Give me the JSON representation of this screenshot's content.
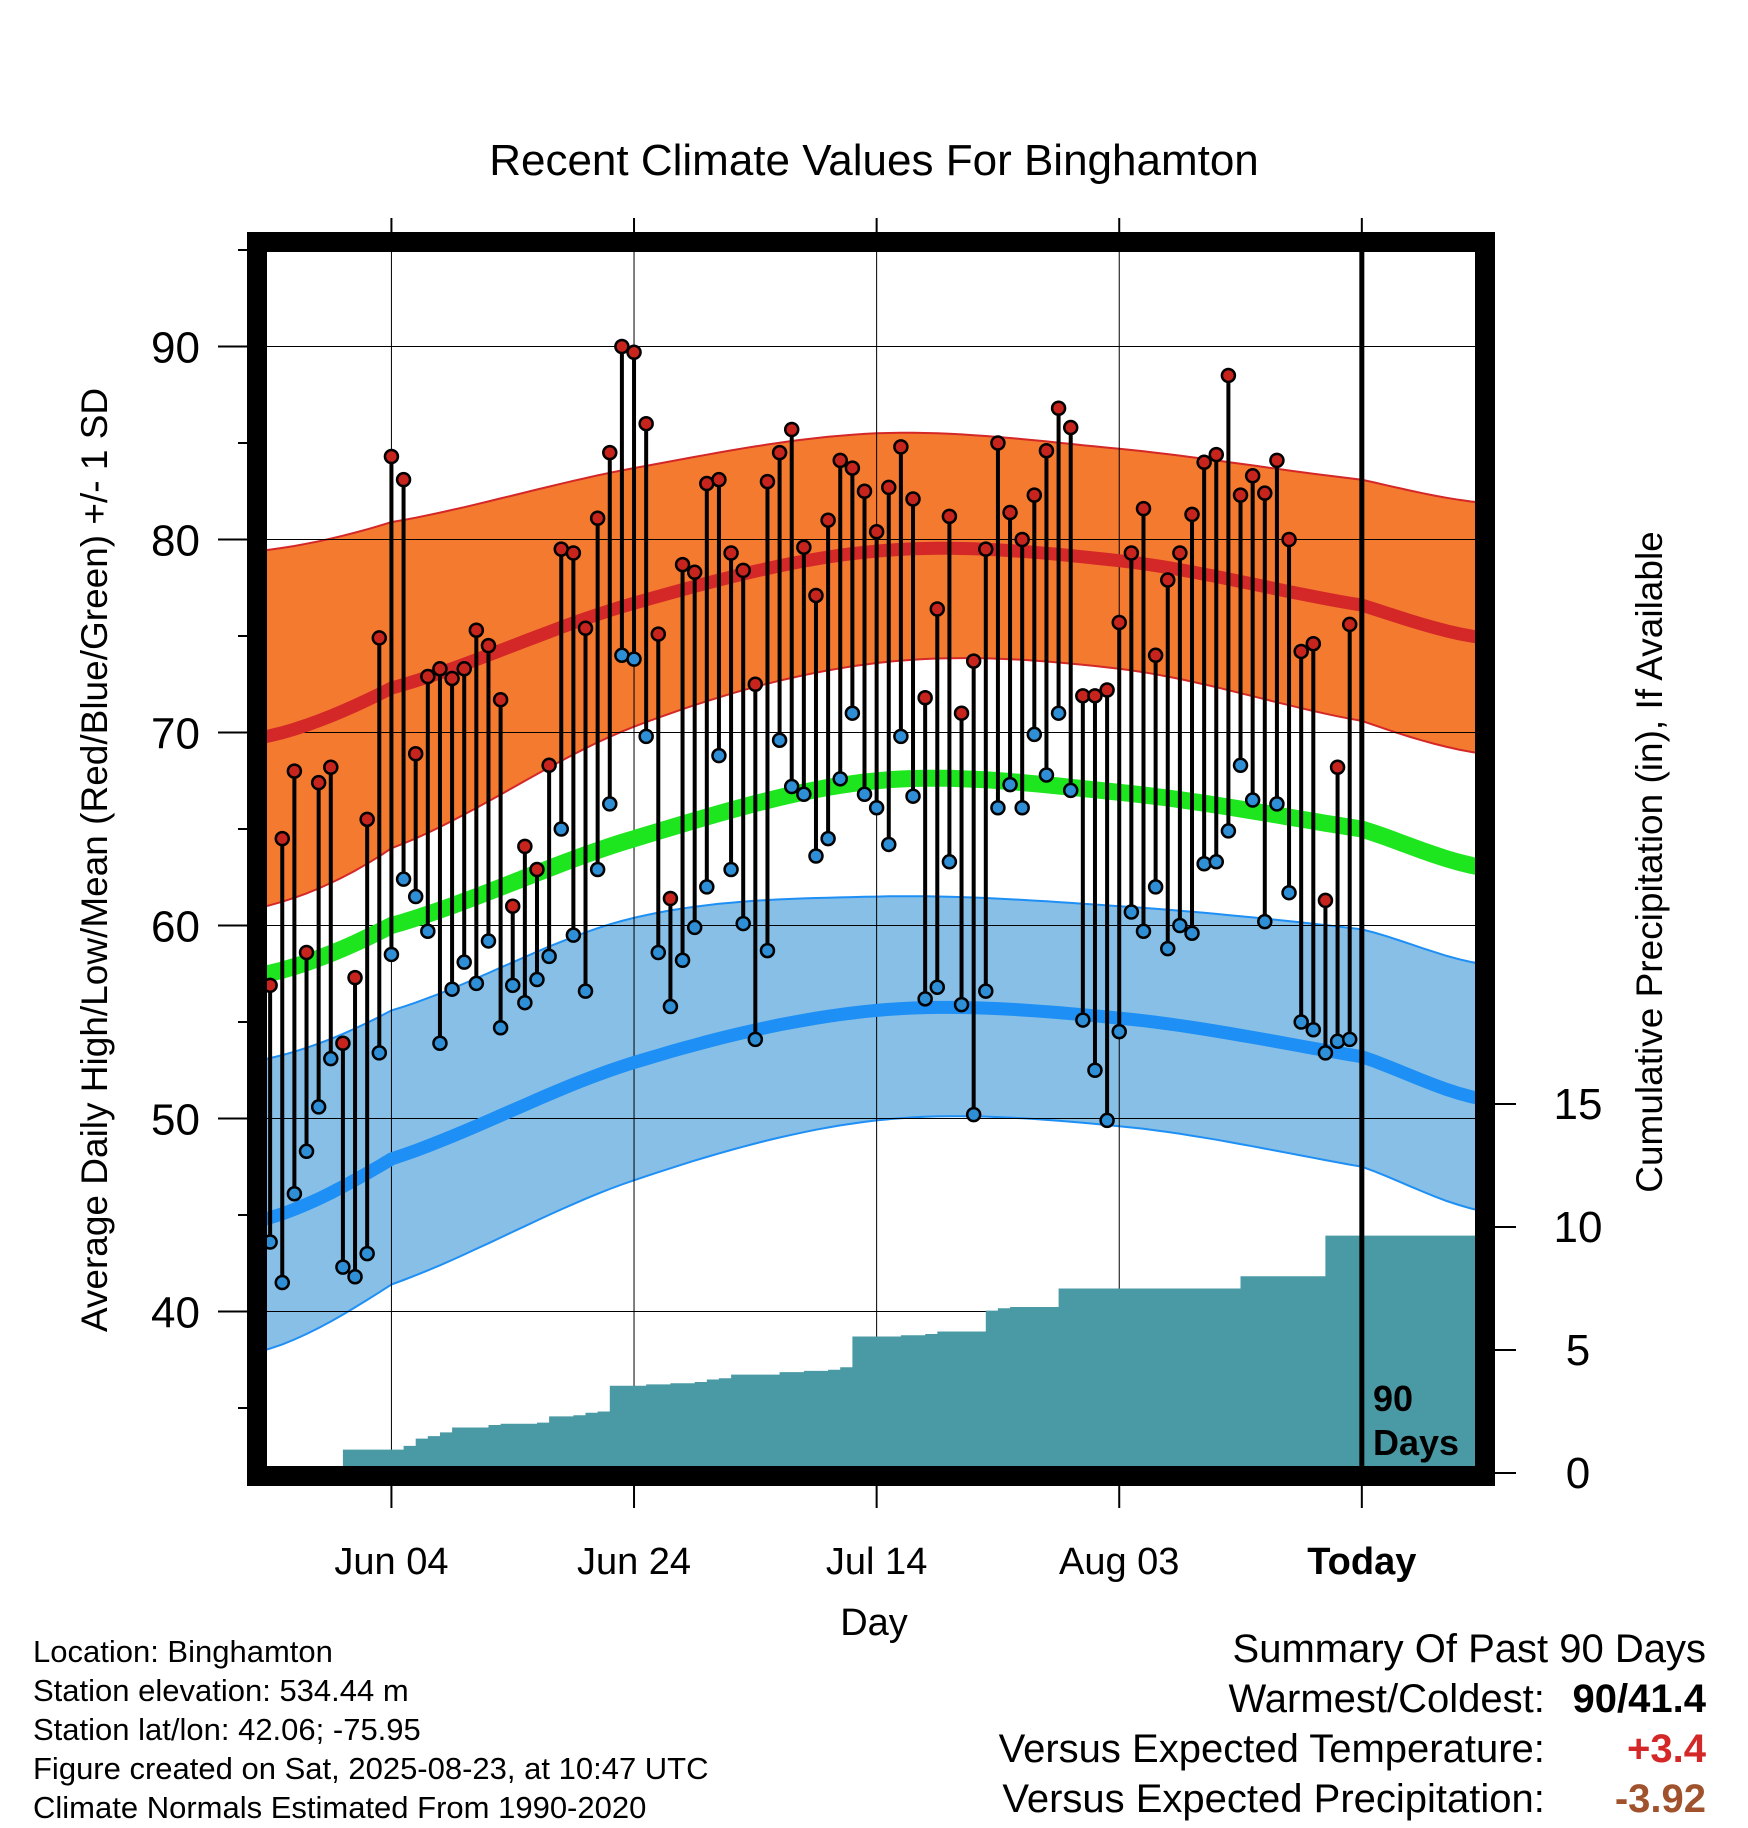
{
  "chart_data": {
    "type": "line",
    "title": "Recent Climate Values For Binghamton",
    "xlabel": "Day",
    "ylabel": "Average Daily High/Low/Mean (Red/Blue/Green) +/- 1 SD",
    "y2label": "Cumulative Precipitation (in), If Available",
    "ylim": [
      31.3,
      95
    ],
    "y_ticks": [
      40,
      50,
      60,
      70,
      80,
      90
    ],
    "y2lim": [
      0,
      23.5
    ],
    "y2_ticks": [
      0,
      5,
      10,
      15
    ],
    "x_range": [
      "2025-05-24",
      "2025-09-02"
    ],
    "x_ticks": [
      {
        "date": "2025-06-04",
        "label": "Jun 04"
      },
      {
        "date": "2025-06-24",
        "label": "Jun 24"
      },
      {
        "date": "2025-07-14",
        "label": "Jul 14"
      },
      {
        "date": "2025-08-03",
        "label": "Aug 03"
      },
      {
        "date": "2025-08-23",
        "label": "Today"
      }
    ],
    "today_marker": {
      "date": "2025-08-23",
      "label_line1": "90",
      "label_line2": "Days"
    },
    "grid": true,
    "colors": {
      "high_band": "#f47a30",
      "high_line": "#d42727",
      "low_band": "#87bfe6",
      "low_line": "#1e8ff5",
      "mean_line": "#1ee61e",
      "precip": "#4a9aa5",
      "observed_high_point": "#c8241e",
      "observed_low_point": "#2f8fd6",
      "positive_anomaly": "#d42727",
      "precip_anomaly": "#a0522d"
    },
    "normals": {
      "dates": [
        "2025-05-24",
        "2025-06-04",
        "2025-06-24",
        "2025-07-14",
        "2025-08-03",
        "2025-08-23",
        "2025-09-02"
      ],
      "high_mean": [
        69.7,
        72.3,
        76.7,
        79.4,
        78.9,
        76.6,
        74.9
      ],
      "high_upper": [
        79.4,
        80.9,
        83.7,
        85.5,
        84.7,
        83.1,
        81.9
      ],
      "high_lower": [
        60.9,
        64.0,
        70.3,
        73.6,
        73.3,
        70.6,
        68.9
      ],
      "mean": [
        57.4,
        60.0,
        64.5,
        67.5,
        66.9,
        65.0,
        63.0
      ],
      "low_mean": [
        44.7,
        47.9,
        52.9,
        55.6,
        55.2,
        53.2,
        51.0
      ],
      "low_upper": [
        53.0,
        55.6,
        60.4,
        61.5,
        61.0,
        59.8,
        58.0
      ],
      "low_lower": [
        37.9,
        41.4,
        46.8,
        49.9,
        49.6,
        47.5,
        45.2
      ]
    },
    "observed": {
      "start_date": "2025-05-25",
      "highs": [
        56.9,
        64.5,
        68.0,
        58.6,
        67.4,
        68.2,
        53.9,
        57.3,
        65.5,
        74.9,
        84.3,
        83.1,
        68.9,
        72.9,
        73.3,
        72.8,
        73.3,
        75.3,
        74.5,
        71.7,
        61.0,
        64.1,
        62.9,
        68.3,
        79.5,
        79.3,
        75.4,
        81.1,
        84.5,
        90.0,
        89.7,
        86.0,
        75.1,
        61.4,
        78.7,
        78.3,
        82.9,
        83.1,
        79.3,
        78.4,
        72.5,
        83.0,
        84.5,
        85.7,
        79.6,
        77.1,
        81.0,
        84.1,
        83.7,
        82.5,
        80.4,
        82.7,
        84.8,
        82.1,
        71.8,
        76.4,
        81.2,
        71.0,
        73.7,
        79.5,
        85.0,
        81.4,
        80.0,
        82.3,
        84.6,
        86.8,
        85.8,
        71.9,
        71.9,
        72.2,
        75.7,
        79.3,
        81.6,
        74.0,
        77.9,
        79.3,
        81.3,
        84.0,
        84.4,
        88.5,
        82.3,
        83.3,
        82.4,
        84.1,
        80.0,
        74.2,
        74.6,
        61.3,
        68.2,
        75.6
      ],
      "lows": [
        43.6,
        41.5,
        46.1,
        48.3,
        50.6,
        53.1,
        42.3,
        41.8,
        43.0,
        53.4,
        58.5,
        62.4,
        61.5,
        59.7,
        53.9,
        56.7,
        58.1,
        57.0,
        59.2,
        54.7,
        56.9,
        56.0,
        57.2,
        58.4,
        65.0,
        59.5,
        56.6,
        62.9,
        66.3,
        74.0,
        73.8,
        69.8,
        58.6,
        55.8,
        58.2,
        59.9,
        62.0,
        68.8,
        62.9,
        60.1,
        54.1,
        58.7,
        69.6,
        67.2,
        66.8,
        63.6,
        64.5,
        67.6,
        71.0,
        66.8,
        66.1,
        64.2,
        69.8,
        66.7,
        56.2,
        56.8,
        63.3,
        55.9,
        50.2,
        56.6,
        66.1,
        67.3,
        66.1,
        69.9,
        67.8,
        71.0,
        67.0,
        55.1,
        52.5,
        49.9,
        54.5,
        60.7,
        59.7,
        62.0,
        58.8,
        60.0,
        59.6,
        63.2,
        63.3,
        64.9,
        68.3,
        66.5,
        60.2,
        66.3,
        61.7,
        55.0,
        54.6,
        53.4,
        54.0,
        54.1
      ]
    },
    "cumulative_precip": {
      "start_date": "2025-05-24",
      "values": [
        0,
        0,
        0,
        0,
        0,
        0,
        0.05,
        0.95,
        0.95,
        0.95,
        0.95,
        0.95,
        1.1,
        1.4,
        1.5,
        1.65,
        1.85,
        1.85,
        1.85,
        1.95,
        2.0,
        2.0,
        2.0,
        2.05,
        2.3,
        2.3,
        2.35,
        2.45,
        2.5,
        3.55,
        3.55,
        3.55,
        3.6,
        3.6,
        3.65,
        3.65,
        3.7,
        3.8,
        3.85,
        4.0,
        4.0,
        4.0,
        4.0,
        4.1,
        4.1,
        4.15,
        4.15,
        4.2,
        4.3,
        5.55,
        5.55,
        5.55,
        5.55,
        5.6,
        5.6,
        5.65,
        5.75,
        5.75,
        5.75,
        5.75,
        6.6,
        6.7,
        6.75,
        6.75,
        6.75,
        6.75,
        7.5,
        7.5,
        7.5,
        7.5,
        7.5,
        7.5,
        7.5,
        7.5,
        7.5,
        7.5,
        7.5,
        7.5,
        7.5,
        7.5,
        7.5,
        8.0,
        8.0,
        8.0,
        8.0,
        8.0,
        8.0,
        8.0,
        9.65,
        9.65,
        9.65,
        9.65,
        9.65,
        9.65,
        9.65,
        9.65,
        9.65,
        9.65,
        9.65,
        9.65,
        9.65,
        9.65
      ]
    }
  },
  "info": {
    "location": "Location: Binghamton",
    "elevation": "Station elevation: 534.44 m",
    "latlon": "Station lat/lon: 42.06; -75.95",
    "created": "Figure created on Sat, 2025-08-23, at 10:47 UTC",
    "normals_period": "Climate Normals Estimated From 1990-2020"
  },
  "summary": {
    "heading": "Summary Of Past 90 Days",
    "warmest_label": "Warmest/Coldest:",
    "warmest_value": "90/41.4",
    "temp_label": "Versus Expected Temperature:",
    "temp_value": "+3.4",
    "precip_label": "Versus Expected Precipitation:",
    "precip_value": "-3.92"
  }
}
